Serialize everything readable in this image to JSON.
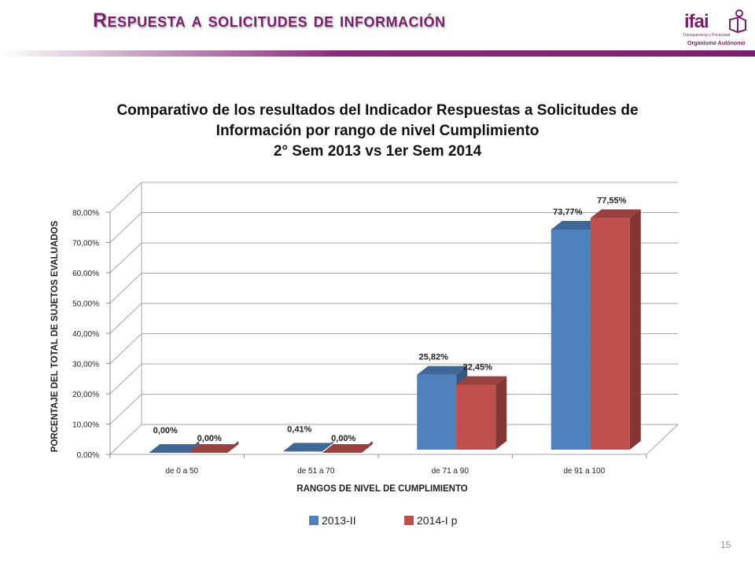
{
  "slide": {
    "title": "Respuesta a solicitudes de información",
    "page_number": "15",
    "logo": {
      "word": "ifai",
      "subtitle": "Transparencia y Privacidad",
      "tagline": "Organismo Autónomo"
    }
  },
  "chart_data": {
    "type": "bar",
    "title_lines": [
      "Comparativo de los resultados del Indicador Respuestas a Solicitudes de",
      "Información  por rango de nivel Cumplimiento",
      "2° Sem 2013 vs 1er Sem 2014"
    ],
    "xlabel": "RANGOS DE NIVEL DE CUMPLIMIENTO",
    "ylabel": "PORCENTAJE DEL TOTAL DE SUJETOS EVALUADOS",
    "categories": [
      "de   0  a 50",
      "de  51 a 70",
      "de  71 a 90",
      "de 91 a 100"
    ],
    "ylim": [
      0,
      80
    ],
    "yticks": [
      "0,00%",
      "10,00%",
      "20,00%",
      "30,00%",
      "40,00%",
      "50,00%",
      "60,00%",
      "70,00%",
      "80,00%"
    ],
    "grid": true,
    "legend_position": "bottom",
    "series": [
      {
        "name": "2013-II",
        "color": "#4f81bd",
        "values": [
          0.0,
          0.41,
          25.82,
          73.77
        ],
        "labels": [
          "0,00%",
          "0,41%",
          "25,82%",
          "73,77%"
        ]
      },
      {
        "name": "2014-I p",
        "color": "#c0504d",
        "values": [
          0.0,
          0.0,
          22.45,
          77.55
        ],
        "labels": [
          "0,00%",
          "0,00%",
          "22,45%",
          "77,55%"
        ]
      }
    ]
  }
}
